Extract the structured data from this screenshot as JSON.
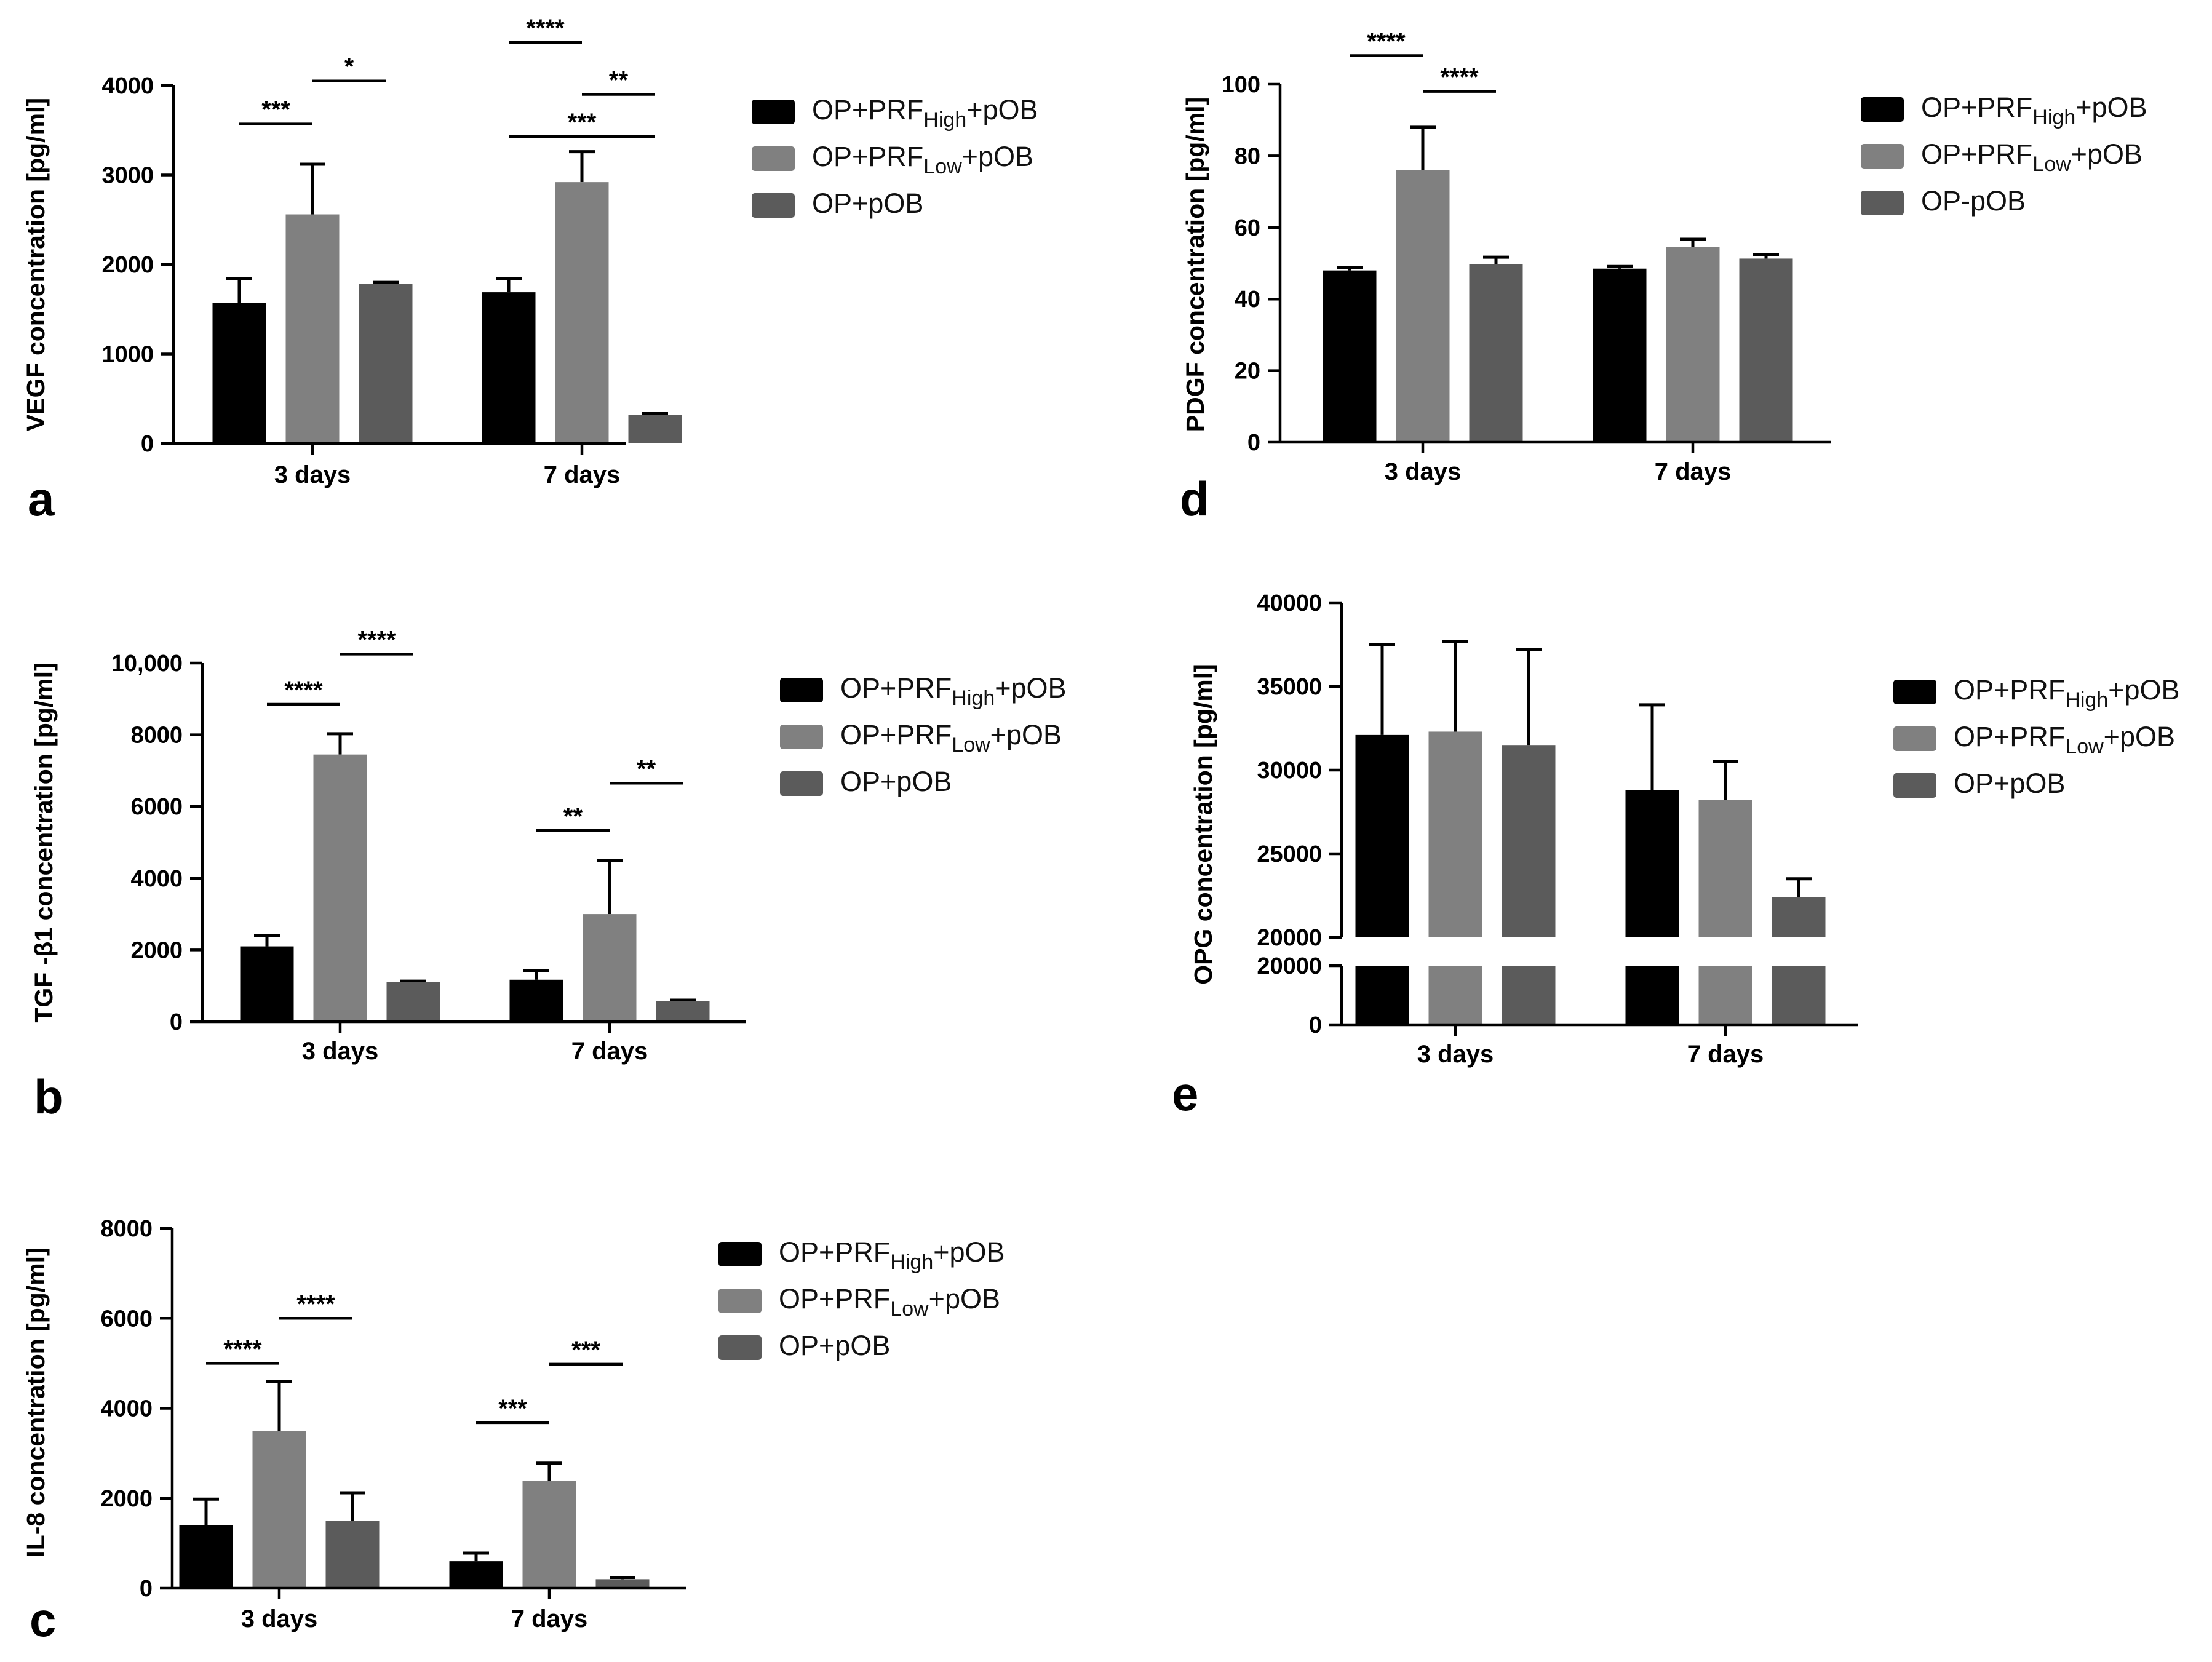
{
  "colors": {
    "high": "#000000",
    "low": "#808080",
    "op": "#5b5b5b",
    "axis": "#000000",
    "background": "#ffffff"
  },
  "chart_data": [
    {
      "panel": "a",
      "type": "bar",
      "ylabel": "VEGF concentration [pg/ml]",
      "categories": [
        "3 days",
        "7 days"
      ],
      "ylim": [
        0,
        4000
      ],
      "yticks": [
        "0",
        "1000",
        "2000",
        "3000",
        "4000"
      ],
      "legend": [
        "OP+PRF",
        "High",
        "+pOB",
        "OP+PRF",
        "Low",
        "+pOB",
        "OP+pOB"
      ],
      "series": [
        {
          "values": [
            1570,
            1690
          ],
          "errors": [
            270,
            150
          ]
        },
        {
          "values": [
            2560,
            2920
          ],
          "errors": [
            560,
            340
          ]
        },
        {
          "values": [
            1780,
            320
          ],
          "errors": [
            20,
            15
          ]
        }
      ],
      "significance": [
        {
          "label": "***",
          "cat": 0,
          "from": 0,
          "to": 1,
          "y": 3570
        },
        {
          "label": "*",
          "cat": 0,
          "from": 1,
          "to": 2,
          "y": 4050
        },
        {
          "label": "****",
          "cat": 1,
          "from": 0,
          "to": 1,
          "y": 4480
        },
        {
          "label": "**",
          "cat": 1,
          "from": 1,
          "to": 2,
          "y": 3900
        },
        {
          "label": "***",
          "cat": 1,
          "from": 0,
          "to": 2,
          "y": 3430
        }
      ]
    },
    {
      "panel": "b",
      "type": "bar",
      "ylabel": "TGF -β1 concentration [pg/ml]",
      "categories": [
        "3 days",
        "7 days"
      ],
      "ylim": [
        0,
        10000
      ],
      "yticks": [
        "0",
        "2000",
        "4000",
        "6000",
        "8000",
        "10,000"
      ],
      "legend": [
        "OP+PRF",
        "High",
        "+pOB",
        "OP+PRF",
        "Low",
        "+pOB",
        "OP+pOB"
      ],
      "series": [
        {
          "values": [
            2100,
            1170
          ],
          "errors": [
            300,
            250
          ]
        },
        {
          "values": [
            7450,
            3000
          ],
          "errors": [
            580,
            1500
          ]
        },
        {
          "values": [
            1100,
            580
          ],
          "errors": [
            30,
            20
          ]
        }
      ],
      "significance": [
        {
          "label": "****",
          "cat": 0,
          "from": 0,
          "to": 1,
          "y": 8850
        },
        {
          "label": "****",
          "cat": 0,
          "from": 1,
          "to": 2,
          "y": 10250
        },
        {
          "label": "**",
          "cat": 1,
          "from": 0,
          "to": 1,
          "y": 5330
        },
        {
          "label": "**",
          "cat": 1,
          "from": 1,
          "to": 2,
          "y": 6650
        }
      ]
    },
    {
      "panel": "c",
      "type": "bar",
      "ylabel": "IL-8 concentration [pg/ml]",
      "categories": [
        "3 days",
        "7 days"
      ],
      "ylim": [
        0,
        8000
      ],
      "yticks": [
        "0",
        "2000",
        "4000",
        "6000",
        "8000"
      ],
      "legend": [
        "OP+PRF",
        "High",
        "+pOB",
        "OP+PRF",
        "Low",
        "+pOB",
        "OP+pOB"
      ],
      "series": [
        {
          "values": [
            1400,
            600
          ],
          "errors": [
            580,
            180
          ]
        },
        {
          "values": [
            3500,
            2380
          ],
          "errors": [
            1100,
            400
          ]
        },
        {
          "values": [
            1500,
            200
          ],
          "errors": [
            620,
            40
          ]
        }
      ],
      "significance": [
        {
          "label": "****",
          "cat": 0,
          "from": 0,
          "to": 1,
          "y": 5000
        },
        {
          "label": "****",
          "cat": 0,
          "from": 1,
          "to": 2,
          "y": 6000
        },
        {
          "label": "***",
          "cat": 1,
          "from": 0,
          "to": 1,
          "y": 3680
        },
        {
          "label": "***",
          "cat": 1,
          "from": 1,
          "to": 2,
          "y": 4980
        }
      ]
    },
    {
      "panel": "d",
      "type": "bar",
      "ylabel": "PDGF concentration [pg/ml]",
      "categories": [
        "3 days",
        "7 days"
      ],
      "ylim": [
        0,
        100
      ],
      "yticks": [
        "0",
        "20",
        "40",
        "60",
        "80",
        "100"
      ],
      "legend": [
        "OP+PRF",
        "High",
        "+pOB",
        "OP+PRF",
        "Low",
        "+pOB",
        "OP-pOB"
      ],
      "series": [
        {
          "values": [
            48,
            48.5
          ],
          "errors": [
            0.8,
            0.6
          ]
        },
        {
          "values": [
            76,
            54.5
          ],
          "errors": [
            12,
            2.2
          ]
        },
        {
          "values": [
            49.7,
            51.3
          ],
          "errors": [
            2,
            1.2
          ]
        }
      ],
      "significance": [
        {
          "label": "****",
          "cat": 0,
          "from": 0,
          "to": 1,
          "y": 108
        },
        {
          "label": "****",
          "cat": 0,
          "from": 1,
          "to": 2,
          "y": 98
        }
      ]
    },
    {
      "panel": "e",
      "type": "bar",
      "ylabel": "OPG concentration [pg/ml]",
      "categories": [
        "3 days",
        "7 days"
      ],
      "ylim": [
        0,
        40000
      ],
      "axis_break": [
        20000,
        20000
      ],
      "yticks_top": [
        "20000",
        "25000",
        "30000",
        "35000",
        "40000"
      ],
      "yticks_bottom": [
        "0",
        "20000"
      ],
      "legend": [
        "OP+PRF",
        "High",
        "+pOB",
        "OP+PRF",
        "Low",
        "+pOB",
        "OP+pOB"
      ],
      "series": [
        {
          "values": [
            32100,
            28800
          ],
          "errors": [
            5400,
            5100
          ]
        },
        {
          "values": [
            32300,
            28200
          ],
          "errors": [
            5400,
            2300
          ]
        },
        {
          "values": [
            31500,
            22400
          ],
          "errors": [
            5700,
            1100
          ]
        }
      ],
      "significance": []
    }
  ]
}
